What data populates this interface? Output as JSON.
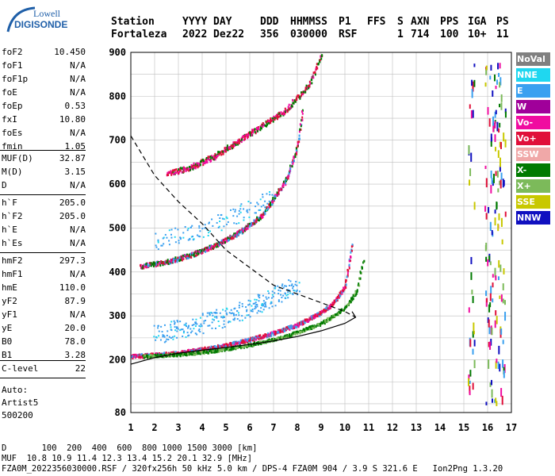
{
  "logo": {
    "line1": "Lowell",
    "line2": "DIGISONDE"
  },
  "header": {
    "labels": [
      "Station",
      "YYYY",
      "DAY",
      "DDD",
      "HHMMSS",
      "P1",
      "FFS",
      "S",
      "AXN",
      "PPS",
      "IGA",
      "PS"
    ],
    "values": [
      "Fortaleza",
      "2022",
      "Dez22",
      "356",
      "030000",
      "RSF",
      "",
      "1",
      "714",
      "100",
      "10+",
      "11"
    ]
  },
  "params_group1": [
    {
      "k": "foF2",
      "v": "10.450"
    },
    {
      "k": "foF1",
      "v": "N/A"
    },
    {
      "k": "foF1p",
      "v": "N/A"
    },
    {
      "k": "foE",
      "v": "N/A"
    },
    {
      "k": "foEp",
      "v": "0.53"
    },
    {
      "k": "fxI",
      "v": "10.80"
    },
    {
      "k": "foEs",
      "v": "N/A"
    },
    {
      "k": "fmin",
      "v": "1.05"
    }
  ],
  "params_group2": [
    {
      "k": "MUF(D)",
      "v": "32.87"
    },
    {
      "k": "M(D)",
      "v": "3.15"
    },
    {
      "k": "D",
      "v": "N/A"
    }
  ],
  "params_group3": [
    {
      "k": "h`F",
      "v": "205.0"
    },
    {
      "k": "h`F2",
      "v": "205.0"
    },
    {
      "k": "h`E",
      "v": "N/A"
    },
    {
      "k": "h`Es",
      "v": "N/A"
    }
  ],
  "params_group4": [
    {
      "k": "hmF2",
      "v": "297.3"
    },
    {
      "k": "hmF1",
      "v": "N/A"
    },
    {
      "k": "hmE",
      "v": "110.0"
    },
    {
      "k": "yF2",
      "v": "87.9"
    },
    {
      "k": "yF1",
      "v": "N/A"
    },
    {
      "k": "yE",
      "v": "20.0"
    },
    {
      "k": "B0",
      "v": "78.0"
    },
    {
      "k": "B1",
      "v": "3.28"
    }
  ],
  "params_group5": [
    {
      "k": "C-level",
      "v": "22"
    }
  ],
  "auto": {
    "line1": "Auto:",
    "line2": "Artist5",
    "line3": "500200"
  },
  "legend": [
    {
      "label": "NoVal",
      "color": "#808080"
    },
    {
      "label": "NNE",
      "color": "#1fd7f0"
    },
    {
      "label": "E",
      "color": "#3aa0f0"
    },
    {
      "label": "W",
      "color": "#a0009a"
    },
    {
      "label": "Vo-",
      "color": "#f00ca0"
    },
    {
      "label": "Vo+",
      "color": "#e0103a"
    },
    {
      "label": "SSW",
      "color": "#f0a8a8"
    },
    {
      "label": "X-",
      "color": "#007a00"
    },
    {
      "label": "X+",
      "color": "#7cba5a"
    },
    {
      "label": "SSE",
      "color": "#c8c800"
    },
    {
      "label": "NNW",
      "color": "#1010c0"
    }
  ],
  "footer": {
    "line1": "D       100  200  400  600  800 1000 1500 3000 [km]",
    "line2": "MUF  10.8 10.9 11.4 12.3 13.4 15.2 20.1 32.9 [MHz]",
    "line3": "FZA0M_2022356030000.RSF / 320fx256h 50 kHz 5.0 km / DPS-4 FZA0M 904 / 3.9 S 321.6 E   Ion2Png 1.3.20"
  },
  "chart_data": {
    "type": "scatter",
    "xlim": [
      1,
      17
    ],
    "ylim": [
      80,
      900
    ],
    "x_ticks": [
      "1",
      "2",
      "3",
      "4",
      "5",
      "6",
      "7",
      "8",
      "9",
      "10",
      "11",
      "12",
      "13",
      "14",
      "15",
      "16",
      "17"
    ],
    "y_ticks": [
      "80",
      "200",
      "300",
      "400",
      "500",
      "600",
      "700",
      "800",
      "900"
    ],
    "grid": true,
    "traces": {
      "o_trace_first_hop": {
        "x": [
          1.0,
          2.0,
          3.0,
          4.0,
          5.0,
          6.0,
          7.0,
          8.0,
          9.0,
          9.5,
          10.0,
          10.3
        ],
        "y": [
          210,
          213,
          218,
          226,
          235,
          248,
          263,
          282,
          310,
          330,
          370,
          470
        ]
      },
      "x_trace_first_hop": {
        "x": [
          1.5,
          3.0,
          4.5,
          6.0,
          7.5,
          9.0,
          10.0,
          10.5,
          10.8
        ],
        "y": [
          210,
          214,
          222,
          236,
          255,
          285,
          320,
          360,
          440
        ]
      },
      "o_trace_second_hop": {
        "x": [
          1.4,
          2.5,
          3.5,
          4.5,
          5.5,
          6.5,
          7.5,
          8.0,
          8.2
        ],
        "y": [
          415,
          425,
          440,
          462,
          490,
          530,
          610,
          690,
          770
        ]
      },
      "o_trace_third_hop": {
        "x": [
          2.5,
          3.5,
          4.5,
          5.5,
          6.5,
          7.5,
          8.5,
          9.0
        ],
        "y": [
          625,
          640,
          665,
          700,
          735,
          770,
          830,
          900
        ]
      },
      "e_scatter_band": {
        "x": [
          2.0,
          3.0,
          4.0,
          5.0,
          6.0,
          7.0,
          8.0
        ],
        "y": [
          260,
          270,
          285,
          300,
          320,
          345,
          370
        ]
      },
      "e_scatter_band_upper": {
        "x": [
          2.0,
          3.0,
          4.0,
          5.0,
          6.0,
          7.0
        ],
        "y": [
          470,
          485,
          500,
          520,
          545,
          570
        ]
      }
    },
    "profile_solid": {
      "x": [
        1.0,
        2.0,
        3.0,
        4.0,
        5.0,
        6.0,
        7.0,
        8.0,
        9.0,
        10.0,
        10.45,
        10.3
      ],
      "y": [
        190,
        205,
        215,
        222,
        228,
        235,
        243,
        253,
        266,
        283,
        297,
        310
      ]
    },
    "profile_dashed": {
      "x": [
        1.0,
        2.0,
        3.0,
        4.0,
        5.0,
        6.0,
        7.0,
        8.0,
        9.0,
        10.0,
        10.45
      ],
      "y": [
        710,
        620,
        560,
        510,
        450,
        410,
        370,
        350,
        330,
        310,
        297
      ]
    },
    "sidebar_scatter_x": [
      15.3,
      16.0,
      16.2,
      16.4,
      16.6
    ]
  }
}
